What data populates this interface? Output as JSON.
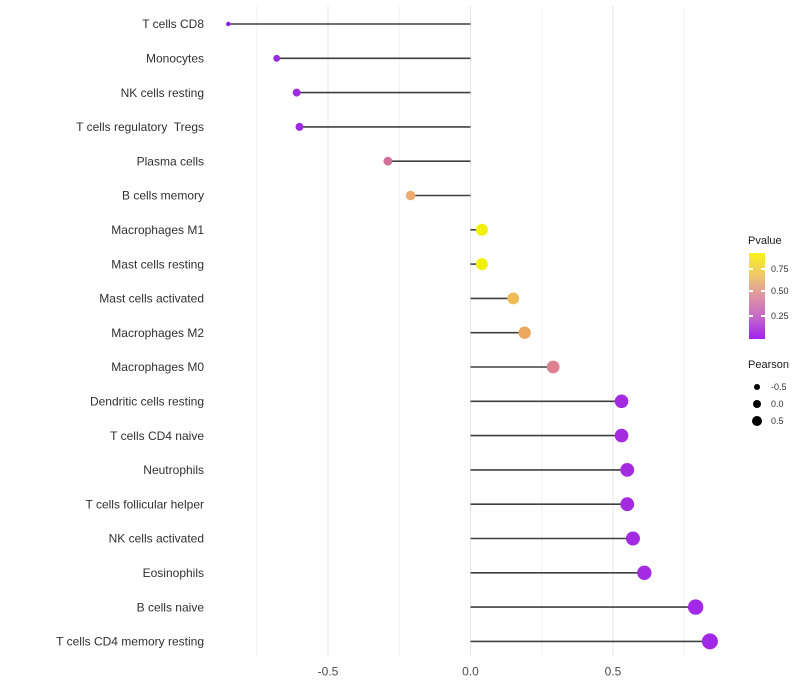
{
  "chart_data": {
    "type": "lollipop",
    "title": "",
    "xlabel": "",
    "ylabel": "",
    "x_axis": {
      "tick_labels": [
        "-0.5",
        "0.0",
        "0.5"
      ],
      "tick_values": [
        -0.5,
        0.0,
        0.5
      ],
      "minor_tick_values": [
        -0.75,
        -0.25,
        0.25,
        0.75
      ],
      "range": [
        -0.94,
        0.92
      ]
    },
    "grid": "vertical major and minor gridlines, white panel",
    "stem_color": "#404040",
    "major_grid_color": "#e7e7e7",
    "minor_grid_color": "#f2f2f2",
    "axis_text_color": "#4d4d4d",
    "category_text_color": "#303030",
    "points": [
      {
        "label": "T cells CD8",
        "pearson": -0.85,
        "pvalue": 0.01,
        "color": "#8b1edb",
        "radius": 2.2
      },
      {
        "label": "Monocytes",
        "pearson": -0.68,
        "pvalue": 0.02,
        "color": "#9b27df",
        "radius": 3.4
      },
      {
        "label": "NK cells resting",
        "pearson": -0.61,
        "pvalue": 0.05,
        "color": "#a02be2",
        "radius": 4.0
      },
      {
        "label": "T cells regulatory  Tregs",
        "pearson": -0.6,
        "pvalue": 0.05,
        "color": "#a02be2",
        "radius": 4.0
      },
      {
        "label": "Plasma cells",
        "pearson": -0.29,
        "pvalue": 0.4,
        "color": "#d06f97",
        "radius": 4.4
      },
      {
        "label": "B cells memory",
        "pearson": -0.21,
        "pvalue": 0.55,
        "color": "#ecab72",
        "radius": 4.8
      },
      {
        "label": "Macrophages M1",
        "pearson": 0.04,
        "pvalue": 0.9,
        "color": "#f2f10d",
        "radius": 6.0
      },
      {
        "label": "Mast cells resting",
        "pearson": 0.04,
        "pvalue": 0.9,
        "color": "#f2f10d",
        "radius": 6.0
      },
      {
        "label": "Mast cells activated",
        "pearson": 0.15,
        "pvalue": 0.7,
        "color": "#edbd55",
        "radius": 5.9
      },
      {
        "label": "Macrophages M2",
        "pearson": 0.19,
        "pvalue": 0.63,
        "color": "#eaa75f",
        "radius": 6.2
      },
      {
        "label": "Macrophages M0",
        "pearson": 0.29,
        "pvalue": 0.42,
        "color": "#dc8090",
        "radius": 6.4
      },
      {
        "label": "Dendritic cells resting",
        "pearson": 0.53,
        "pvalue": 0.08,
        "color": "#a42be0",
        "radius": 6.8
      },
      {
        "label": "T cells CD4 naive",
        "pearson": 0.53,
        "pvalue": 0.08,
        "color": "#a42be0",
        "radius": 6.8
      },
      {
        "label": "Neutrophils",
        "pearson": 0.55,
        "pvalue": 0.08,
        "color": "#a42be0",
        "radius": 6.9
      },
      {
        "label": "T cells follicular helper",
        "pearson": 0.55,
        "pvalue": 0.08,
        "color": "#a42be0",
        "radius": 6.9
      },
      {
        "label": "NK cells activated",
        "pearson": 0.57,
        "pvalue": 0.07,
        "color": "#a32be1",
        "radius": 7.0
      },
      {
        "label": "Eosinophils",
        "pearson": 0.61,
        "pvalue": 0.06,
        "color": "#a32be1",
        "radius": 7.2
      },
      {
        "label": "B cells naive",
        "pearson": 0.79,
        "pvalue": 0.03,
        "color": "#a128e5",
        "radius": 7.7
      },
      {
        "label": "T cells CD4 memory resting",
        "pearson": 0.84,
        "pvalue": 0.02,
        "color": "#a128e5",
        "radius": 8.0
      }
    ],
    "color_legend": {
      "title": "Pvalue",
      "gradient_top_to_bottom": [
        "#f9f216",
        "#efc96b",
        "#de94a3",
        "#c367c9",
        "#a222ee"
      ],
      "ticks": [
        {
          "label": "0.75",
          "frac_from_top": 0.186
        },
        {
          "label": "0.50",
          "frac_from_top": 0.442
        },
        {
          "label": "0.25",
          "frac_from_top": 0.733
        }
      ]
    },
    "size_legend": {
      "title": "Pearson",
      "entries": [
        {
          "label": "-0.5",
          "diameter": 6.6
        },
        {
          "label": "0.0",
          "diameter": 8.4
        },
        {
          "label": "0.5",
          "diameter": 10.0
        }
      ]
    }
  }
}
